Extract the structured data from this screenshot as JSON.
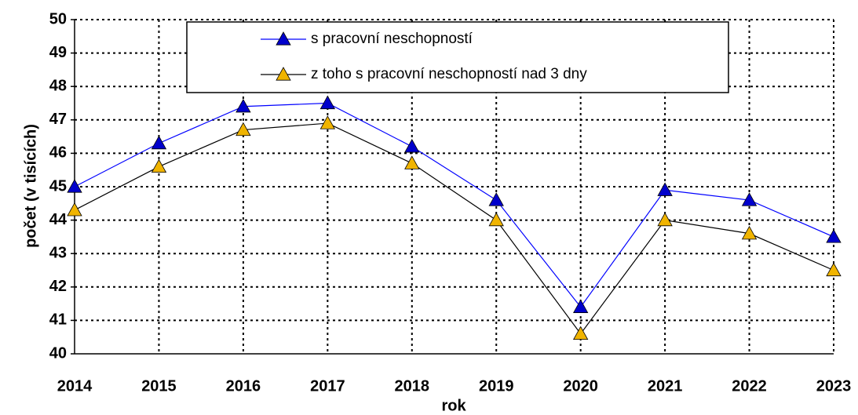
{
  "chart_data": {
    "type": "line",
    "x_label": "rok",
    "y_label": "počet (v tisících)",
    "categories": [
      "2014",
      "2015",
      "2016",
      "2017",
      "2018",
      "2019",
      "2020",
      "2021",
      "2022",
      "2023"
    ],
    "series": [
      {
        "name": "s pracovní neschopností",
        "color": "#0000ff",
        "marker_color": "#0000cc",
        "values": [
          45.0,
          46.3,
          47.4,
          47.5,
          46.2,
          44.6,
          41.4,
          44.9,
          44.6,
          43.5
        ]
      },
      {
        "name": "z toho s pracovní neschopností nad 3 dny",
        "color": "#000000",
        "marker_color": "#f0b400",
        "values": [
          44.3,
          45.6,
          46.7,
          46.9,
          45.7,
          44.0,
          40.6,
          44.0,
          43.6,
          42.5
        ]
      }
    ],
    "ylim": [
      40,
      50
    ],
    "yticks": [
      40,
      41,
      42,
      43,
      44,
      45,
      46,
      47,
      48,
      49,
      50
    ],
    "grid": true
  }
}
